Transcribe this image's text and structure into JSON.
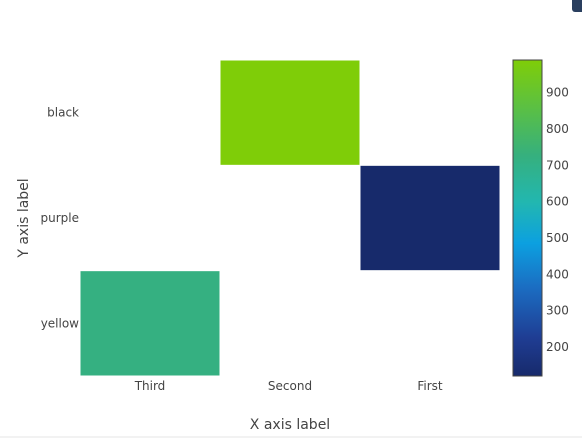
{
  "chart_data": {
    "type": "heatmap",
    "title": "",
    "xlabel": "X axis label",
    "ylabel": "Y axis label",
    "x_categories": [
      "Third",
      "Second",
      "First"
    ],
    "y_categories": [
      "yellow",
      "purple",
      "black"
    ],
    "cells": [
      {
        "x": "Second",
        "y": "black",
        "value": 990
      },
      {
        "x": "First",
        "y": "purple",
        "value": 120
      },
      {
        "x": "Third",
        "y": "yellow",
        "value": 720
      }
    ],
    "colorscale": "viridis",
    "colorbar": {
      "range": [
        120,
        990
      ],
      "ticks": [
        200,
        300,
        400,
        500,
        600,
        700,
        800,
        900
      ]
    },
    "grid": false,
    "legend": "colorbar-right"
  },
  "ui": {
    "corner_button_icon": "modebar-toggle-icon"
  }
}
